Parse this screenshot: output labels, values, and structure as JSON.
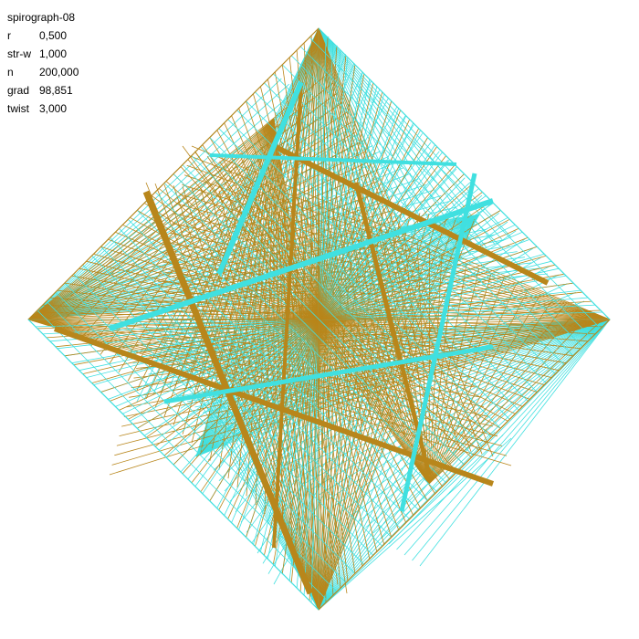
{
  "title": "spirograph-08",
  "params": [
    {
      "key": "r",
      "value": "0,500"
    },
    {
      "key": "str-w",
      "value": "1,000"
    },
    {
      "key": "n",
      "value": "200,000"
    },
    {
      "key": "grad",
      "value": "98,851"
    },
    {
      "key": "twist",
      "value": "3,000"
    }
  ],
  "colors": {
    "background": "#ffffff",
    "strand_a": "#b8861b",
    "strand_b": "#40e0e0"
  }
}
